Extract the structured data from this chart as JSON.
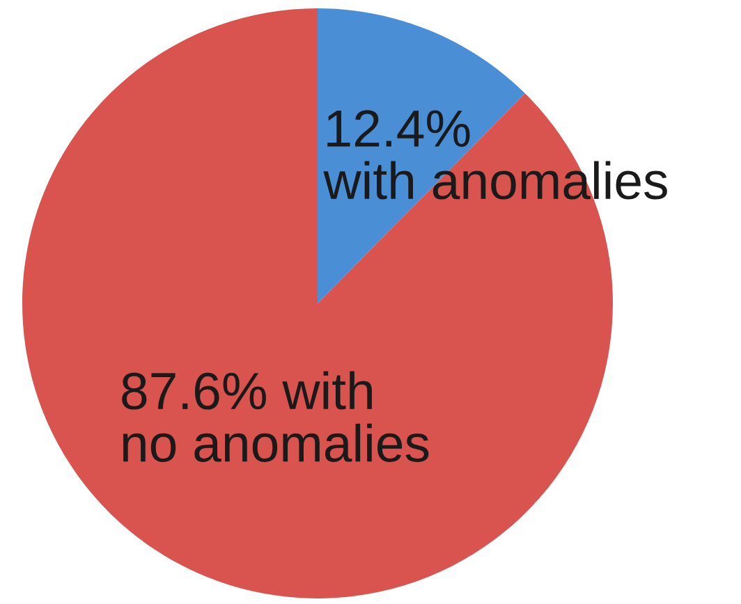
{
  "chart_data": {
    "type": "pie",
    "categories": [
      "12.4%\nwith anomalies",
      "87.6% with\nno anomalies"
    ],
    "values": [
      12.4,
      87.6
    ],
    "colors": [
      "#4a8fd6",
      "#d9534f"
    ]
  }
}
